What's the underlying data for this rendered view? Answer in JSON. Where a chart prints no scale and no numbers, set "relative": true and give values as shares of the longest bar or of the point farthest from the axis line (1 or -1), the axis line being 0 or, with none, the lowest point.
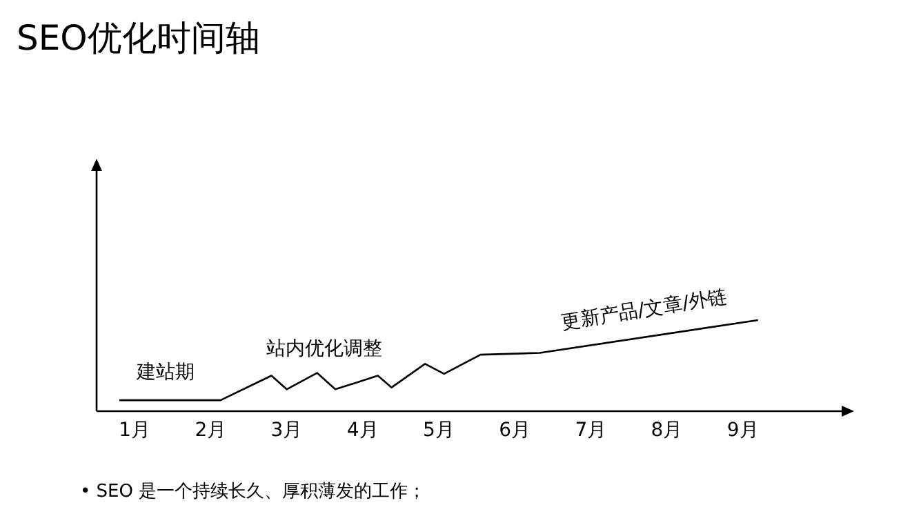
{
  "chart_data": {
    "type": "line",
    "title": "SEO优化时间轴",
    "relative": true,
    "xlim": [
      0.5,
      10.3
    ],
    "xticks": [
      {
        "value": 1,
        "label": "1月"
      },
      {
        "value": 2,
        "label": "2月"
      },
      {
        "value": 3,
        "label": "3月"
      },
      {
        "value": 4,
        "label": "4月"
      },
      {
        "value": 5,
        "label": "5月"
      },
      {
        "value": 6,
        "label": "6月"
      },
      {
        "value": 7,
        "label": "7月"
      },
      {
        "value": 8,
        "label": "8月"
      },
      {
        "value": 9,
        "label": "9月"
      }
    ],
    "series": [
      {
        "color": "#000000",
        "x": [
          0.8,
          2.13,
          2.8,
          3.0,
          3.4,
          3.64,
          4.2,
          4.38,
          4.82,
          5.07,
          5.55,
          6.33,
          9.2
        ],
        "values": [
          0.12,
          0.12,
          0.39,
          0.24,
          0.42,
          0.24,
          0.39,
          0.26,
          0.52,
          0.41,
          0.62,
          0.64,
          1
        ]
      }
    ],
    "annotations": [
      "建站期",
      "站内优化调整",
      "更新产品/文章/外链",
      "• SEO 是一个持续长久、厚积薄发的工作；"
    ],
    "grid": false,
    "marker": "none",
    "line_style": "solid"
  }
}
